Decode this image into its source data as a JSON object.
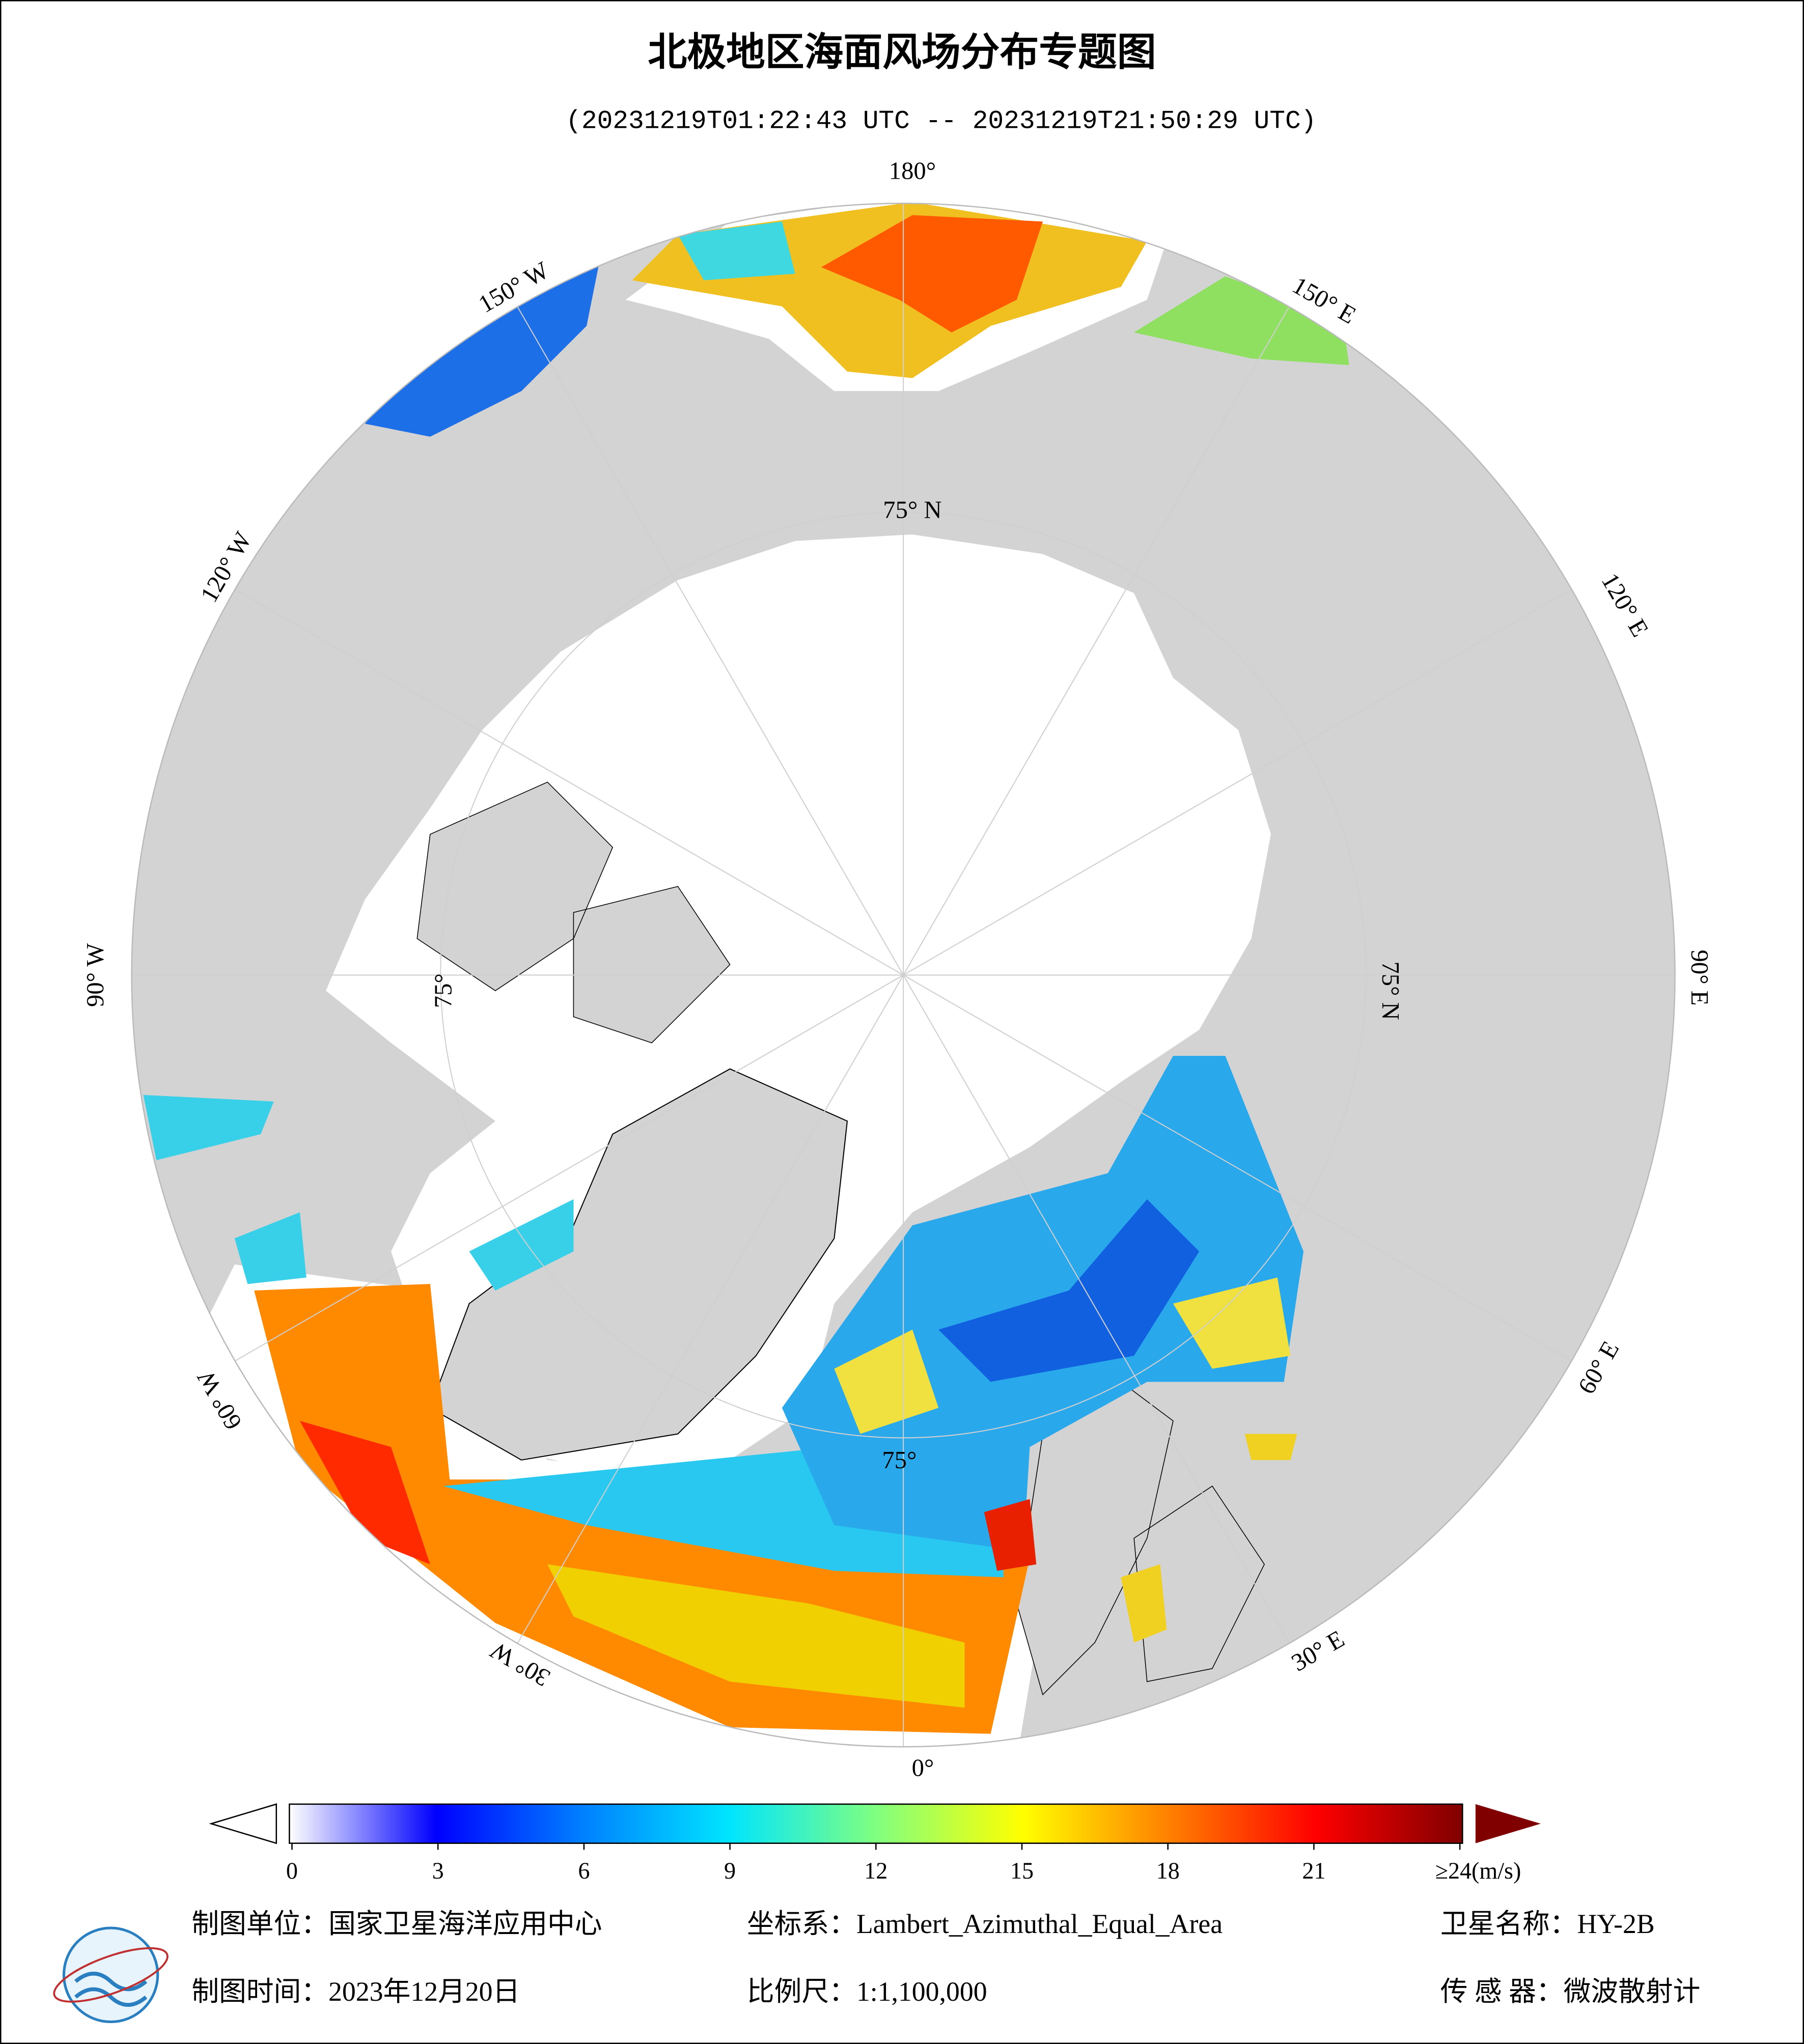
{
  "header": {
    "title": "北极地区海面风场分布专题图",
    "subtitle": "(20231219T01:22:43 UTC -- 20231219T21:50:29 UTC)"
  },
  "map": {
    "longitude_labels": [
      "180°",
      "150° W",
      "120° W",
      "90° W",
      "60° W",
      "30° W",
      "0°",
      "30° E",
      "60° E",
      "90° E",
      "120° E",
      "150° E"
    ],
    "latitude_labels": [
      "75° N",
      "75° N",
      "75°",
      "75°"
    ]
  },
  "colorbar": {
    "lim": [
      0,
      24
    ],
    "colors": [
      "#ffffff",
      "#0000ff",
      "#0080ff",
      "#00e5ff",
      "#80ff80",
      "#ffff00",
      "#ff8000",
      "#ff0000",
      "#800000"
    ],
    "ticks": [
      0,
      3,
      6,
      9,
      12,
      15,
      18,
      21,
      {
        "value": 24,
        "label": "≥24(m/s)"
      }
    ]
  },
  "footer": {
    "producer": "制图单位：国家卫星海洋应用中心",
    "projection": "坐标系：Lambert_Azimuthal_Equal_Area",
    "satellite": "卫星名称：HY-2B",
    "date": "制图时间：2023年12月20日",
    "scale": "比例尺：1:1,100,000",
    "sensor": "传 感 器：微波散射计"
  }
}
